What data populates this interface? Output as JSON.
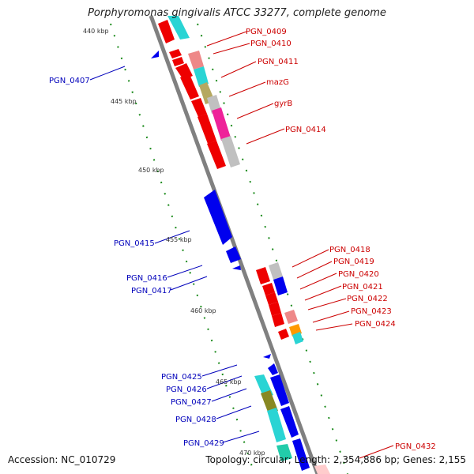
{
  "title": "Porphyromonas gingivalis ATCC 33277, complete genome",
  "accession": "Accession: NC_010729",
  "topology": "Topology: circular; Length: 2,354,886 bp; Genes: 2,155",
  "colors": {
    "forward_label": "#cc0000",
    "reverse_label": "#0000bb",
    "backbone": "#808080",
    "ticks": "#1a8a1a"
  },
  "ticks": [
    "440 kbp",
    "445 kbp",
    "450 kbp",
    "455 kbp",
    "460 kbp",
    "465 kbp",
    "470 kbp"
  ],
  "forward_labels": [
    "PGN_0409",
    "PGN_0410",
    "PGN_0411",
    "mazG",
    "gyrB",
    "PGN_0414",
    "PGN_0418",
    "PGN_0419",
    "PGN_0420",
    "PGN_0421",
    "PGN_0422",
    "PGN_0423",
    "PGN_0424",
    "PGN_0432"
  ],
  "reverse_labels": [
    "PGN_0407",
    "PGN_0415",
    "PGN_0416",
    "PGN_0417",
    "PGN_0425",
    "PGN_0426",
    "PGN_0427",
    "PGN_0428",
    "PGN_0429"
  ]
}
